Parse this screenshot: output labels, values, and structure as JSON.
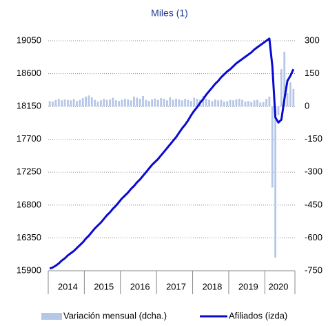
{
  "chart_data": {
    "type": "combo",
    "title": "Miles (1)",
    "categories": [
      null,
      null,
      null,
      null,
      null,
      null,
      "2014",
      null,
      null,
      null,
      null,
      null,
      null,
      null,
      null,
      null,
      null,
      null,
      "2015",
      null,
      null,
      null,
      null,
      null,
      null,
      null,
      null,
      null,
      null,
      null,
      "2016",
      null,
      null,
      null,
      null,
      null,
      null,
      null,
      null,
      null,
      null,
      null,
      "2017",
      null,
      null,
      null,
      null,
      null,
      null,
      null,
      null,
      null,
      null,
      null,
      "2018",
      null,
      null,
      null,
      null,
      null,
      null,
      null,
      null,
      null,
      null,
      null,
      "2019",
      null,
      null,
      null,
      null,
      null,
      null,
      null,
      null,
      null,
      "2020",
      null,
      null,
      null,
      null,
      null
    ],
    "series": [
      {
        "name": "Variación mensual (dcha.)",
        "type": "bar",
        "axis": "y2",
        "color": "#b4c7e7",
        "values": [
          25,
          22,
          30,
          35,
          28,
          32,
          30,
          28,
          34,
          25,
          30,
          38,
          45,
          50,
          42,
          30,
          22,
          28,
          35,
          30,
          32,
          40,
          28,
          25,
          30,
          35,
          32,
          28,
          45,
          40,
          35,
          48,
          30,
          25,
          32,
          36,
          30,
          38,
          35,
          28,
          42,
          30,
          36,
          32,
          28,
          35,
          30,
          25,
          40,
          35,
          30,
          48,
          35,
          30,
          25,
          32,
          28,
          30,
          22,
          25,
          30,
          28,
          32,
          35,
          30,
          22,
          25,
          20,
          28,
          30,
          18,
          20,
          35,
          45,
          -370,
          -690,
          -40,
          170,
          250,
          60,
          110,
          80
        ]
      },
      {
        "name": "Afiliados (izda)",
        "type": "line",
        "color": "#0a0ad0",
        "values": [
          15930,
          15945,
          15970,
          16000,
          16040,
          16070,
          16110,
          16140,
          16170,
          16210,
          16250,
          16290,
          16340,
          16380,
          16430,
          16480,
          16520,
          16560,
          16610,
          16660,
          16700,
          16750,
          16790,
          16840,
          16890,
          16930,
          16970,
          17020,
          17060,
          17110,
          17150,
          17200,
          17250,
          17300,
          17350,
          17390,
          17430,
          17480,
          17530,
          17580,
          17630,
          17680,
          17730,
          17790,
          17850,
          17900,
          17960,
          18030,
          18090,
          18140,
          18200,
          18250,
          18310,
          18360,
          18410,
          18460,
          18500,
          18550,
          18590,
          18630,
          18660,
          18700,
          18740,
          18770,
          18800,
          18830,
          18860,
          18890,
          18930,
          18960,
          18990,
          19020,
          19050,
          19080,
          18700,
          18000,
          17930,
          17970,
          18250,
          18500,
          18570,
          18660
        ]
      }
    ],
    "ylim": [
      15900,
      19050
    ],
    "yticks": [
      15900,
      16350,
      16800,
      17250,
      17700,
      18150,
      18600,
      19050
    ],
    "y2lim": [
      -750,
      300
    ],
    "y2ticks": [
      -750,
      -600,
      -450,
      -300,
      -150,
      0,
      150,
      300
    ],
    "grid": true
  }
}
